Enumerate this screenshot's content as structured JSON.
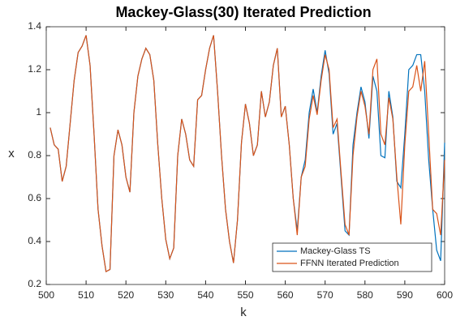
{
  "chart_data": {
    "type": "line",
    "title": "Mackey-Glass(30) Iterated Prediction",
    "xlabel": "k",
    "ylabel": "x",
    "x": [
      501,
      502,
      503,
      504,
      505,
      506,
      507,
      508,
      509,
      510,
      511,
      512,
      513,
      514,
      515,
      516,
      517,
      518,
      519,
      520,
      521,
      522,
      523,
      524,
      525,
      526,
      527,
      528,
      529,
      530,
      531,
      532,
      533,
      534,
      535,
      536,
      537,
      538,
      539,
      540,
      541,
      542,
      543,
      544,
      545,
      546,
      547,
      548,
      549,
      550,
      551,
      552,
      553,
      554,
      555,
      556,
      557,
      558,
      559,
      560,
      561,
      562,
      563,
      564,
      565,
      566,
      567,
      568,
      569,
      570,
      571,
      572,
      573,
      574,
      575,
      576,
      577,
      578,
      579,
      580,
      581,
      582,
      583,
      584,
      585,
      586,
      587,
      588,
      589,
      590,
      591,
      592,
      593,
      594,
      595,
      596,
      597,
      598,
      599,
      600
    ],
    "series": [
      {
        "name": "Mackey-Glass TS",
        "color": "#0072bd",
        "values": [
          0.93,
          0.85,
          0.83,
          0.68,
          0.75,
          0.95,
          1.15,
          1.28,
          1.31,
          1.36,
          1.22,
          0.9,
          0.55,
          0.38,
          0.26,
          0.27,
          0.8,
          0.92,
          0.85,
          0.7,
          0.63,
          1.0,
          1.17,
          1.25,
          1.3,
          1.27,
          1.15,
          0.85,
          0.6,
          0.41,
          0.32,
          0.37,
          0.8,
          0.97,
          0.9,
          0.78,
          0.75,
          1.06,
          1.08,
          1.2,
          1.3,
          1.36,
          1.1,
          0.8,
          0.55,
          0.4,
          0.3,
          0.5,
          0.86,
          1.04,
          0.95,
          0.8,
          0.85,
          1.1,
          0.98,
          1.05,
          1.22,
          1.3,
          0.98,
          1.03,
          0.85,
          0.6,
          0.45,
          0.7,
          0.78,
          1.0,
          1.11,
          1.0,
          1.17,
          1.29,
          1.18,
          0.9,
          0.95,
          0.7,
          0.45,
          0.43,
          0.85,
          1.0,
          1.12,
          1.05,
          0.88,
          1.17,
          1.1,
          0.8,
          0.79,
          1.1,
          0.98,
          0.68,
          0.65,
          0.9,
          1.2,
          1.22,
          1.27,
          1.27,
          1.1,
          0.78,
          0.55,
          0.36,
          0.31,
          0.86
        ]
      },
      {
        "name": "FFNN Iterated Prediction",
        "color": "#d95319",
        "values": [
          0.93,
          0.85,
          0.83,
          0.68,
          0.75,
          0.95,
          1.15,
          1.28,
          1.31,
          1.36,
          1.22,
          0.9,
          0.55,
          0.38,
          0.26,
          0.27,
          0.8,
          0.92,
          0.85,
          0.7,
          0.63,
          1.0,
          1.17,
          1.25,
          1.3,
          1.27,
          1.15,
          0.85,
          0.6,
          0.41,
          0.32,
          0.37,
          0.8,
          0.97,
          0.9,
          0.78,
          0.75,
          1.06,
          1.08,
          1.2,
          1.3,
          1.36,
          1.1,
          0.8,
          0.55,
          0.4,
          0.3,
          0.5,
          0.86,
          1.04,
          0.95,
          0.8,
          0.85,
          1.1,
          0.98,
          1.05,
          1.22,
          1.3,
          0.98,
          1.03,
          0.85,
          0.6,
          0.43,
          0.7,
          0.75,
          0.97,
          1.08,
          0.99,
          1.15,
          1.27,
          1.2,
          0.93,
          0.97,
          0.72,
          0.48,
          0.43,
          0.8,
          0.98,
          1.1,
          1.03,
          0.9,
          1.2,
          1.25,
          0.9,
          0.85,
          1.07,
          0.97,
          0.7,
          0.48,
          0.85,
          1.1,
          1.12,
          1.22,
          1.1,
          1.24,
          0.9,
          0.55,
          0.53,
          0.43,
          0.78
        ]
      }
    ],
    "xlim": [
      500,
      600
    ],
    "xticks": [
      500,
      510,
      520,
      530,
      540,
      550,
      560,
      570,
      580,
      590,
      600
    ],
    "ylim": [
      0.2,
      1.4
    ],
    "yticks": [
      0.2,
      0.4,
      0.6,
      0.8,
      1,
      1.2,
      1.4
    ],
    "legend": "lower right"
  }
}
